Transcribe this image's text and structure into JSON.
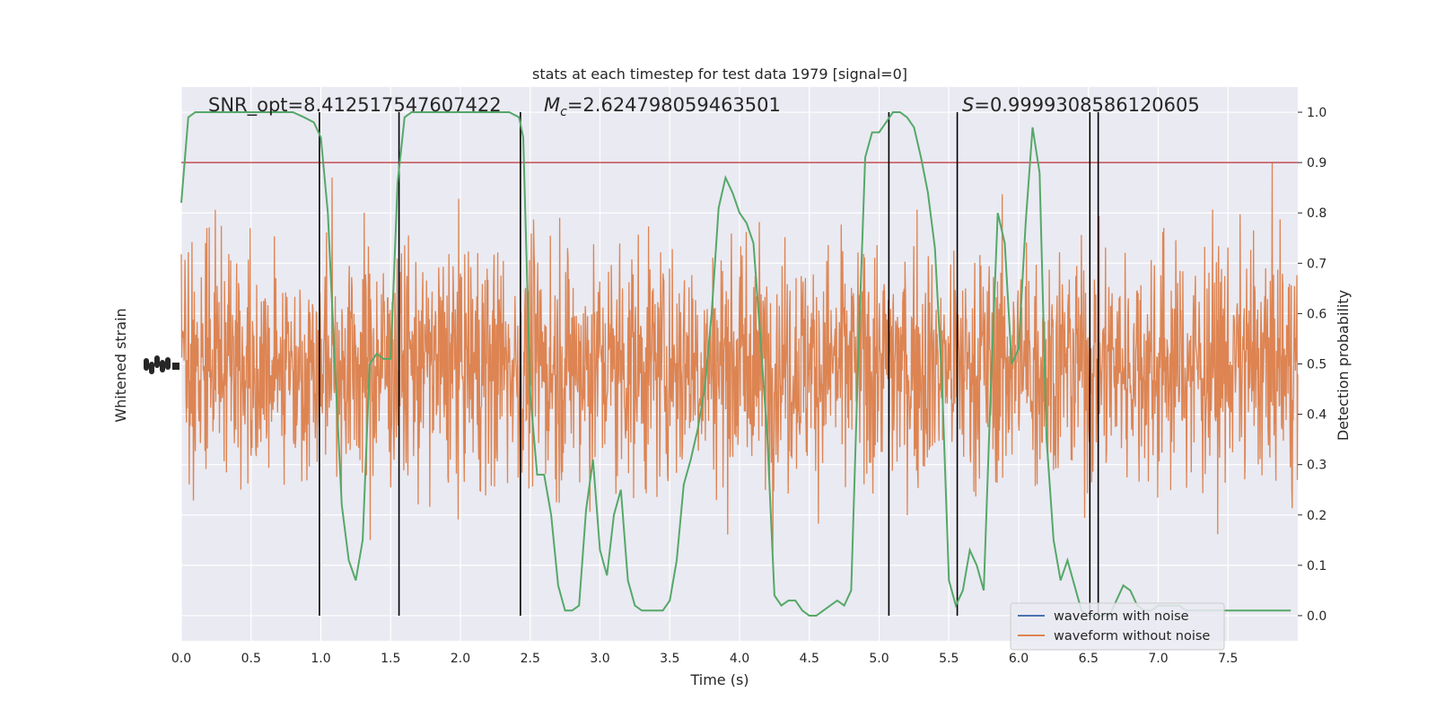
{
  "chart_data": {
    "type": "line",
    "title": "stats at each timestep for test data 1979 [signal=0]",
    "xlabel": "Time (s)",
    "ylabel_left": "Whitened strain",
    "ylabel_right": "Detection probability",
    "xlim": [
      0,
      8
    ],
    "ylim_right": [
      -0.05,
      1.05
    ],
    "x_ticks": [
      0.0,
      0.5,
      1.0,
      1.5,
      2.0,
      2.5,
      3.0,
      3.5,
      4.0,
      4.5,
      5.0,
      5.5,
      6.0,
      6.5,
      7.0,
      7.5
    ],
    "x_tick_labels": [
      "0.0",
      "0.5",
      "1.0",
      "1.5",
      "2.0",
      "2.5",
      "3.0",
      "3.5",
      "4.0",
      "4.5",
      "5.0",
      "5.5",
      "6.0",
      "6.5",
      "7.0",
      "7.5"
    ],
    "y_right_ticks": [
      0.0,
      0.1,
      0.2,
      0.3,
      0.4,
      0.5,
      0.6,
      0.7,
      0.8,
      0.9,
      1.0
    ],
    "y_right_tick_labels": [
      "0.0",
      "0.1",
      "0.2",
      "0.3",
      "0.4",
      "0.5",
      "0.6",
      "0.7",
      "0.8",
      "0.9",
      "1.0"
    ],
    "annotations": {
      "snr_label": "SNR_opt=8.412517547607422",
      "mc_label_symbol": "M",
      "mc_label_sub": "c",
      "mc_label_value": "=2.624798059463501",
      "s_label_symbol": "S",
      "s_label_value": "=0.9999308586120605"
    },
    "threshold": 0.9,
    "vertical_lines": [
      0.99,
      1.56,
      2.43,
      5.07,
      5.56,
      6.51,
      6.57
    ],
    "legend": {
      "placement": "lower right",
      "entries": [
        "waveform with noise",
        "waveform without noise"
      ]
    },
    "series": [
      {
        "name": "waveform with noise",
        "axis": "left",
        "color": "#4c72b0",
        "x": [],
        "y": []
      },
      {
        "name": "waveform without noise",
        "axis": "left",
        "color": "#dd8452",
        "noise_center": 0.5,
        "noise_extent": [
          0.0,
          1.0
        ]
      },
      {
        "axis": "right",
        "color": "#55a868",
        "x": [
          0.0,
          0.05,
          0.1,
          0.15,
          0.2,
          0.3,
          0.4,
          0.5,
          0.6,
          0.7,
          0.8,
          0.88,
          0.95,
          1.0,
          1.05,
          1.1,
          1.15,
          1.2,
          1.25,
          1.3,
          1.35,
          1.4,
          1.45,
          1.5,
          1.55,
          1.6,
          1.65,
          1.7,
          1.75,
          1.8,
          1.9,
          2.0,
          2.2,
          2.35,
          2.42,
          2.45,
          2.5,
          2.55,
          2.6,
          2.65,
          2.7,
          2.75,
          2.8,
          2.85,
          2.9,
          2.95,
          3.0,
          3.05,
          3.1,
          3.15,
          3.2,
          3.25,
          3.3,
          3.35,
          3.4,
          3.45,
          3.5,
          3.55,
          3.6,
          3.65,
          3.7,
          3.75,
          3.8,
          3.85,
          3.9,
          3.95,
          4.0,
          4.05,
          4.1,
          4.15,
          4.2,
          4.25,
          4.3,
          4.35,
          4.4,
          4.45,
          4.5,
          4.55,
          4.6,
          4.65,
          4.7,
          4.75,
          4.8,
          4.85,
          4.9,
          4.95,
          5.0,
          5.05,
          5.1,
          5.15,
          5.2,
          5.25,
          5.3,
          5.35,
          5.4,
          5.45,
          5.5,
          5.55,
          5.6,
          5.65,
          5.7,
          5.75,
          5.8,
          5.85,
          5.9,
          5.95,
          6.0,
          6.05,
          6.1,
          6.15,
          6.2,
          6.25,
          6.3,
          6.35,
          6.4,
          6.45,
          6.5,
          6.55,
          6.6,
          6.65,
          6.7,
          6.75,
          6.8,
          6.85,
          6.9,
          6.95,
          7.0,
          7.05,
          7.1,
          7.15,
          7.2,
          7.25,
          7.3,
          7.35,
          7.4,
          7.45,
          7.5,
          7.55,
          7.6,
          7.65,
          7.7,
          7.75,
          7.8,
          7.85,
          7.9,
          7.95
        ],
        "y": [
          0.82,
          0.99,
          1.0,
          1.0,
          1.0,
          1.0,
          1.0,
          1.0,
          1.0,
          1.0,
          1.0,
          0.99,
          0.98,
          0.95,
          0.8,
          0.5,
          0.22,
          0.11,
          0.07,
          0.15,
          0.5,
          0.52,
          0.51,
          0.51,
          0.86,
          0.99,
          1.0,
          1.0,
          1.0,
          1.0,
          1.0,
          1.0,
          1.0,
          1.0,
          0.99,
          0.95,
          0.44,
          0.28,
          0.28,
          0.2,
          0.06,
          0.01,
          0.01,
          0.02,
          0.21,
          0.31,
          0.13,
          0.08,
          0.2,
          0.25,
          0.07,
          0.02,
          0.01,
          0.01,
          0.01,
          0.01,
          0.03,
          0.11,
          0.26,
          0.31,
          0.37,
          0.45,
          0.6,
          0.81,
          0.87,
          0.84,
          0.8,
          0.78,
          0.74,
          0.55,
          0.35,
          0.04,
          0.02,
          0.03,
          0.03,
          0.01,
          0.0,
          0.0,
          0.01,
          0.02,
          0.03,
          0.02,
          0.05,
          0.51,
          0.91,
          0.96,
          0.96,
          0.98,
          1.0,
          1.0,
          0.99,
          0.97,
          0.91,
          0.84,
          0.73,
          0.47,
          0.07,
          0.02,
          0.05,
          0.13,
          0.1,
          0.05,
          0.45,
          0.8,
          0.74,
          0.5,
          0.53,
          0.78,
          0.97,
          0.88,
          0.35,
          0.15,
          0.07,
          0.11,
          0.06,
          0.01,
          0.0,
          0.0,
          0.0,
          0.0,
          0.03,
          0.06,
          0.05,
          0.02,
          0.01,
          0.01,
          0.02,
          0.02,
          0.02,
          0.02,
          0.01,
          0.01,
          0.01,
          0.01,
          0.01,
          0.01,
          0.01,
          0.01,
          0.01,
          0.01,
          0.01,
          0.01,
          0.01,
          0.01,
          0.01,
          0.01
        ]
      }
    ]
  }
}
